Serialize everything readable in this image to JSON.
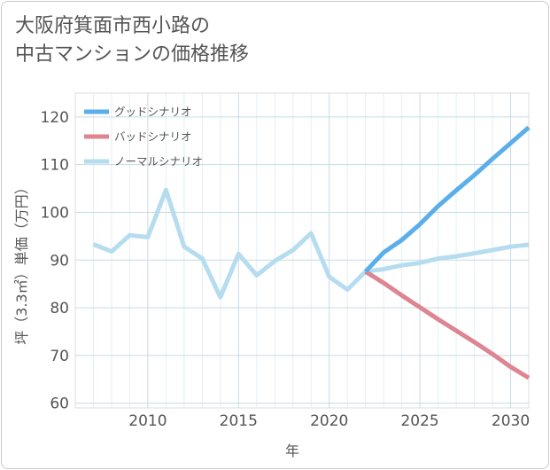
{
  "title_line1": "大阪府箕面市西小路の",
  "title_line2": "中古マンションの価格推移",
  "chart_data": {
    "type": "line",
    "title": "大阪府箕面市西小路の中古マンションの価格推移",
    "xlabel": "年",
    "ylabel": "坪（3.3㎡）単価（万円）",
    "xlim": [
      2006,
      2031
    ],
    "ylim": [
      59,
      125
    ],
    "x_ticks": [
      2010,
      2015,
      2020,
      2025,
      2030
    ],
    "y_ticks": [
      60,
      70,
      80,
      90,
      100,
      110,
      120
    ],
    "legend_position": "top-left",
    "series": [
      {
        "name": "グッドシナリオ",
        "color": "#5aaeea",
        "x": [
          2022,
          2023,
          2024,
          2025,
          2026,
          2027,
          2028,
          2029,
          2030,
          2031
        ],
        "values": [
          87.6,
          91.6,
          94.2,
          97.5,
          101.3,
          104.6,
          107.8,
          111.2,
          114.5,
          117.8
        ]
      },
      {
        "name": "バッドシナリオ",
        "color": "#dd8590",
        "x": [
          2022,
          2023,
          2024,
          2025,
          2026,
          2027,
          2028,
          2029,
          2030,
          2031
        ],
        "values": [
          87.6,
          85.2,
          82.6,
          80.1,
          77.6,
          75.2,
          72.8,
          70.3,
          67.6,
          65.3
        ]
      },
      {
        "name": "ノーマルシナリオ",
        "color": "#b6dcef",
        "x": [
          2007,
          2008,
          2009,
          2010,
          2011,
          2012,
          2013,
          2014,
          2015,
          2016,
          2017,
          2018,
          2019,
          2020,
          2021,
          2022,
          2023,
          2024,
          2025,
          2026,
          2027,
          2028,
          2029,
          2030,
          2031
        ],
        "values": [
          93.3,
          91.8,
          95.2,
          94.8,
          104.7,
          92.8,
          90.3,
          82.2,
          91.3,
          86.8,
          89.8,
          92.1,
          95.6,
          86.5,
          83.8,
          87.6,
          88.1,
          88.9,
          89.4,
          90.3,
          90.8,
          91.4,
          92.1,
          92.8,
          93.2
        ]
      }
    ]
  }
}
